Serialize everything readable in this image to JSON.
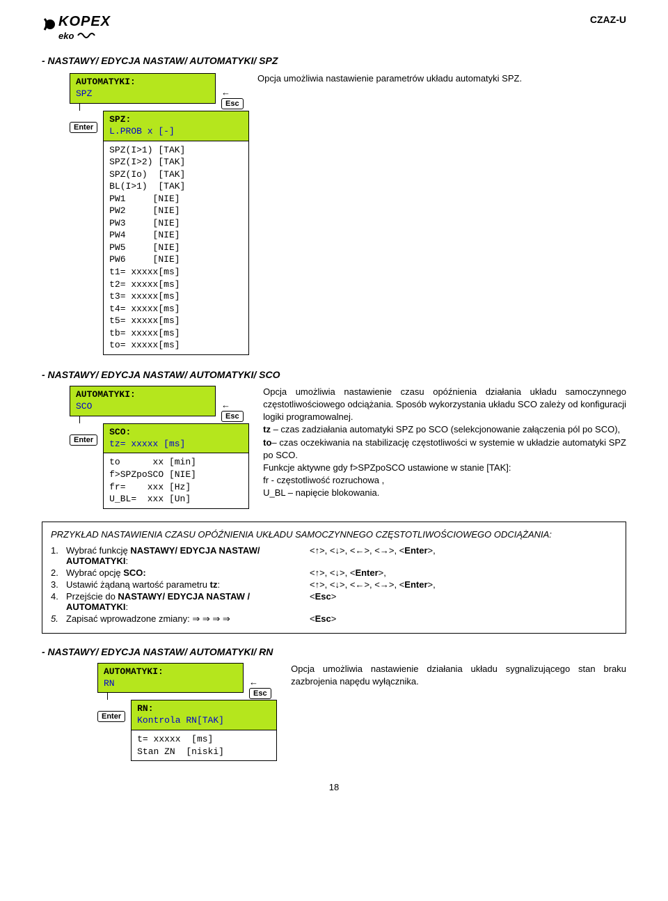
{
  "header": {
    "logo_main": "KOPEX",
    "logo_sub": "eko",
    "doc_id": "CZAZ-U"
  },
  "spz_section": {
    "title": "-   NASTAWY/ EDYCJA NASTAW/ AUTOMATYKI/ SPZ",
    "desc": "Opcja umożliwia nastawienie parametrów układu automatyki SPZ.",
    "box1_line1": "AUTOMATYKI:",
    "box1_line2": "SPZ",
    "enter_key": "Enter",
    "esc_key": "Esc",
    "box2_line1": "SPZ:",
    "box2_line2": "L.PROB  x  [-]",
    "list": "SPZ(I>1) [TAK]\nSPZ(I>2) [TAK]\nSPZ(Io)  [TAK]\nBL(I>1)  [TAK]\nPW1     [NIE]\nPW2     [NIE]\nPW3     [NIE]\nPW4     [NIE]\nPW5     [NIE]\nPW6     [NIE]\nt1= xxxxx[ms]\nt2= xxxxx[ms]\nt3= xxxxx[ms]\nt4= xxxxx[ms]\nt5= xxxxx[ms]\ntb= xxxxx[ms]\nto= xxxxx[ms]"
  },
  "sco_section": {
    "title": "-   NASTAWY/ EDYCJA NASTAW/ AUTOMATYKI/ SCO",
    "box1_line1": "AUTOMATYKI:",
    "box1_line2": "SCO",
    "box2_line1": "SCO:",
    "box2_line2": "tz=  xxxxx [ms]",
    "list": "to      xx [min]\nf>SPZpoSCO [NIE]\nfr=    xxx [Hz]\nU_BL=  xxx [Un]",
    "desc_p1": "Opcja umożliwia nastawienie czasu opóźnienia działania układu samoczynnego częstotliwościowego odciążania. Sposób wykorzystania układu SCO zależy od konfiguracji logiki programowalnej.",
    "desc_tz_label": "tz",
    "desc_tz": " – czas zadziałania automatyki SPZ po SCO (selekcjonowanie załączenia pól po SCO),",
    "desc_to_label": "to",
    "desc_to": "– czas oczekiwania na stabilizację częstotliwości w systemie w układzie automatyki SPZ po SCO.",
    "desc_funkcje": "Funkcje aktywne gdy f>SPZpoSCO ustawione w  stanie [TAK]:",
    "desc_fr": "fr - częstotliwość rozruchowa ,",
    "desc_ubl": "U_BL – napięcie blokowania."
  },
  "example": {
    "title": "PRZYKŁAD NASTAWIENIA CZASU OPÓŹNIENIA UKŁADU SAMOCZYNNEGO CZĘSTOTLIWOŚCIOWEGO ODCIĄŻANIA:",
    "items": [
      {
        "n": "1.",
        "t": "Wybrać funkcję NASTAWY/ EDYCJA NASTAW/ AUTOMATYKI:",
        "k": "<↑>, <↓>, <←>, <→>, <Enter>,",
        "bold": "NASTAWY/ EDYCJA NASTAW/ AUTOMATYKI"
      },
      {
        "n": "2.",
        "t": "Wybrać opcję SCO:",
        "k": "<↑>, <↓>, <Enter>,",
        "bold": "SCO:"
      },
      {
        "n": "3.",
        "t": "Ustawić żądaną wartość parametru tz:",
        "k": "<↑>, <↓>, <←>, <→>, <Enter>,",
        "bold": "tz"
      },
      {
        "n": "4.",
        "t": "Przejście do NASTAWY/ EDYCJA NASTAW / AUTOMATYKI:",
        "k": "<Esc>",
        "bold": "NASTAWY/ EDYCJA NASTAW / AUTOMATYKI"
      },
      {
        "n": "5.",
        "t": "Zapisać wprowadzone zmiany: ⇒   ⇒   ⇒   ⇒",
        "k": "<Esc>",
        "italic_num": true
      }
    ]
  },
  "rn_section": {
    "title": "-   NASTAWY/ EDYCJA NASTAW/ AUTOMATYKI/ RN",
    "desc": "Opcja umożliwia nastawienie działania układu sygnalizującego stan braku zazbrojenia napędu wyłącznika.",
    "box1_line1": "AUTOMATYKI:",
    "box1_line2": "RN",
    "box2_line1": "RN:",
    "box2_line2": "Kontrola RN[TAK]",
    "list": "t= xxxxx  [ms]\nStan ZN  [niski]"
  },
  "page": "18"
}
